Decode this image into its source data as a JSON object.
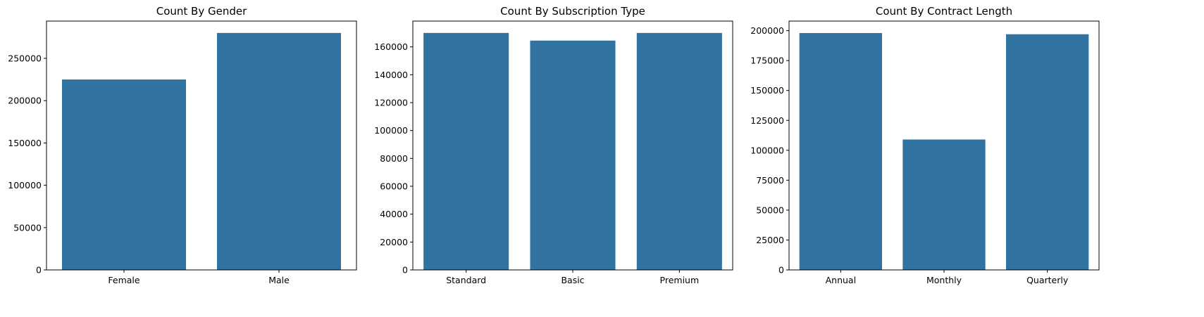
{
  "chart_data": [
    {
      "type": "bar",
      "title": "Count By Gender",
      "xlabel": "",
      "ylabel": "",
      "categories": [
        "Female",
        "Male"
      ],
      "values": [
        225000,
        280000
      ],
      "ylim": [
        0,
        294000
      ],
      "yticks": [
        0,
        50000,
        100000,
        150000,
        200000,
        250000
      ],
      "grid": false,
      "bar_color": "#3274a1"
    },
    {
      "type": "bar",
      "title": "Count By Subscription Type",
      "xlabel": "",
      "ylabel": "",
      "categories": [
        "Standard",
        "Basic",
        "Premium"
      ],
      "values": [
        170000,
        164500,
        170000
      ],
      "ylim": [
        0,
        178500
      ],
      "yticks": [
        0,
        20000,
        40000,
        60000,
        80000,
        100000,
        120000,
        140000,
        160000
      ],
      "grid": false,
      "bar_color": "#3274a1"
    },
    {
      "type": "bar",
      "title": "Count By Contract Length",
      "xlabel": "",
      "ylabel": "",
      "categories": [
        "Annual",
        "Monthly",
        "Quarterly"
      ],
      "values": [
        198000,
        109000,
        197000
      ],
      "ylim": [
        0,
        208000
      ],
      "yticks": [
        0,
        25000,
        50000,
        75000,
        100000,
        125000,
        150000,
        175000,
        200000
      ],
      "grid": false,
      "bar_color": "#3274a1"
    }
  ]
}
